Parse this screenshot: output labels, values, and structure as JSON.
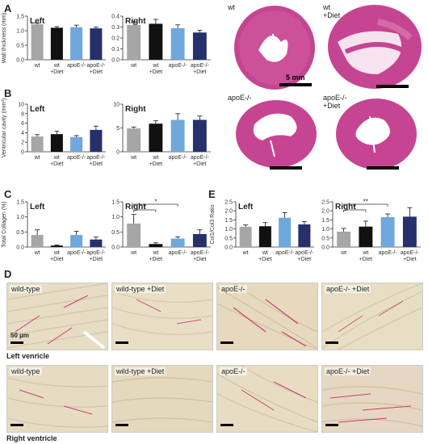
{
  "colors": {
    "wt": "#a6a6a6",
    "wt_diet": "#111111",
    "apoe": "#6fa8dc",
    "apoe_diet": "#26306b",
    "stain_bg": "#e8dcc0",
    "heart": "#c43a8a"
  },
  "panel_letters": {
    "A": "A",
    "B": "B",
    "C": "C",
    "D": "D",
    "E": "E"
  },
  "chart_data": [
    {
      "id": "A-left",
      "type": "bar",
      "panel": "A",
      "title": "Left",
      "ylabel": "Wall thickness (mm)",
      "ylim": [
        0,
        1.5
      ],
      "yticks": [
        0.0,
        0.5,
        1.0,
        1.5
      ],
      "categories": [
        [
          "wt"
        ],
        [
          "wt",
          "+Diet"
        ],
        [
          "apoE-/-"
        ],
        [
          "apoE-/-",
          "+Diet"
        ]
      ],
      "values": [
        1.22,
        1.1,
        1.12,
        1.08
      ],
      "errors": [
        0.04,
        0.04,
        0.07,
        0.04
      ],
      "significance": []
    },
    {
      "id": "A-right",
      "type": "bar",
      "panel": "A",
      "title": "Right",
      "ylabel": "",
      "ylim": [
        0,
        0.4
      ],
      "yticks": [
        0.0,
        0.1,
        0.2,
        0.3,
        0.4
      ],
      "categories": [
        [
          "wt"
        ],
        [
          "wt",
          "+Diet"
        ],
        [
          "apoE-/-"
        ],
        [
          "apoE-/-",
          "+Diet"
        ]
      ],
      "values": [
        0.32,
        0.33,
        0.29,
        0.25
      ],
      "errors": [
        0.03,
        0.04,
        0.03,
        0.02
      ],
      "significance": []
    },
    {
      "id": "B-left",
      "type": "bar",
      "panel": "B",
      "title": "Left",
      "ylabel": "Ventricular cavity (mm²)",
      "ylim": [
        0,
        10
      ],
      "yticks": [
        0,
        2,
        4,
        6,
        8,
        10
      ],
      "categories": [
        [
          "wt"
        ],
        [
          "wt",
          "+Diet"
        ],
        [
          "apoE-/-"
        ],
        [
          "apoE-/-",
          "+Diet"
        ]
      ],
      "values": [
        3.2,
        3.7,
        3.1,
        4.6
      ],
      "errors": [
        0.4,
        0.6,
        0.3,
        0.8
      ],
      "significance": []
    },
    {
      "id": "B-right",
      "type": "bar",
      "panel": "B",
      "title": "Right",
      "ylabel": "",
      "ylim": [
        0,
        10
      ],
      "yticks": [
        0,
        5,
        10
      ],
      "categories": [
        [
          "wt"
        ],
        [
          "wt",
          "+Diet"
        ],
        [
          "apoE-/-"
        ],
        [
          "apoE-/-",
          "+Diet"
        ]
      ],
      "values": [
        4.9,
        5.9,
        6.7,
        6.7
      ],
      "errors": [
        0.3,
        0.6,
        1.3,
        0.8
      ],
      "significance": []
    },
    {
      "id": "C-left",
      "type": "bar",
      "panel": "C",
      "title": "Left",
      "ylabel": "Total Collagen (%)",
      "ylim": [
        0,
        1.5
      ],
      "yticks": [
        0.0,
        0.5,
        1.0,
        1.5
      ],
      "categories": [
        [
          "wt"
        ],
        [
          "wt",
          "+Diet"
        ],
        [
          "apoE-/-"
        ],
        [
          "apoE-/-",
          "+Diet"
        ]
      ],
      "values": [
        0.4,
        0.05,
        0.4,
        0.25
      ],
      "errors": [
        0.17,
        0.02,
        0.12,
        0.08
      ],
      "significance": []
    },
    {
      "id": "C-right",
      "type": "bar",
      "panel": "C",
      "title": "Right",
      "ylabel": "",
      "ylim": [
        0,
        1.5
      ],
      "yticks": [
        0.0,
        0.5,
        1.0,
        1.5
      ],
      "categories": [
        [
          "wt"
        ],
        [
          "wt",
          "+Diet"
        ],
        [
          "apoE-/-"
        ],
        [
          "apoE-/-",
          "+Diet"
        ]
      ],
      "values": [
        0.78,
        0.1,
        0.28,
        0.43
      ],
      "errors": [
        0.3,
        0.04,
        0.06,
        0.14
      ],
      "significance": [
        {
          "from": 0,
          "to": 1,
          "label": "*",
          "level": 1
        },
        {
          "from": 0,
          "to": 2,
          "label": "*",
          "level": 2
        }
      ]
    },
    {
      "id": "E-left",
      "type": "bar",
      "panel": "E",
      "title": "Left",
      "ylabel": "Col1/Col3 Ratio",
      "ylim": [
        0,
        2.5
      ],
      "yticks": [
        0.0,
        0.5,
        1.0,
        1.5,
        2.0,
        2.5
      ],
      "categories": [
        [
          "wt"
        ],
        [
          "wt",
          "+Diet"
        ],
        [
          "apoE-/-"
        ],
        [
          "apoE-/-",
          "+Diet"
        ]
      ],
      "values": [
        1.12,
        1.15,
        1.62,
        1.25
      ],
      "errors": [
        0.1,
        0.2,
        0.28,
        0.16
      ],
      "significance": []
    },
    {
      "id": "E-right",
      "type": "bar",
      "panel": "E",
      "title": "Right",
      "ylabel": "",
      "ylim": [
        0,
        2.5
      ],
      "yticks": [
        0.0,
        0.5,
        1.0,
        1.5,
        2.0,
        2.5
      ],
      "categories": [
        [
          "wt"
        ],
        [
          "wt",
          "+Diet"
        ],
        [
          "apoE-/-"
        ],
        [
          "apoE-/-",
          "+Diet"
        ]
      ],
      "values": [
        0.85,
        1.13,
        1.65,
        1.68
      ],
      "errors": [
        0.18,
        0.3,
        0.18,
        0.5
      ],
      "significance": [
        {
          "from": 0,
          "to": 1,
          "label": "*",
          "level": 1
        },
        {
          "from": 0,
          "to": 2,
          "label": "**",
          "level": 2
        }
      ]
    }
  ],
  "hearts": [
    {
      "label": [
        "wt"
      ]
    },
    {
      "label": [
        "wt",
        "+Diet"
      ]
    },
    {
      "label": [
        "apoE-/-"
      ]
    },
    {
      "label": [
        "apoE-/-",
        "+Diet"
      ]
    }
  ],
  "heart_scale_label": "5 mm",
  "micrographs": {
    "left_row": [
      "wild-type",
      "wild-type +Diet",
      "apoE-/-",
      "apoE-/- +Diet"
    ],
    "right_row": [
      "wild-type",
      "wild-type +Diet",
      "apoE-/-",
      "apoE-/- +Diet"
    ],
    "scale_label": "50 µm",
    "left_row_caption": "Left venricle",
    "right_row_caption": "Right ventricle"
  }
}
